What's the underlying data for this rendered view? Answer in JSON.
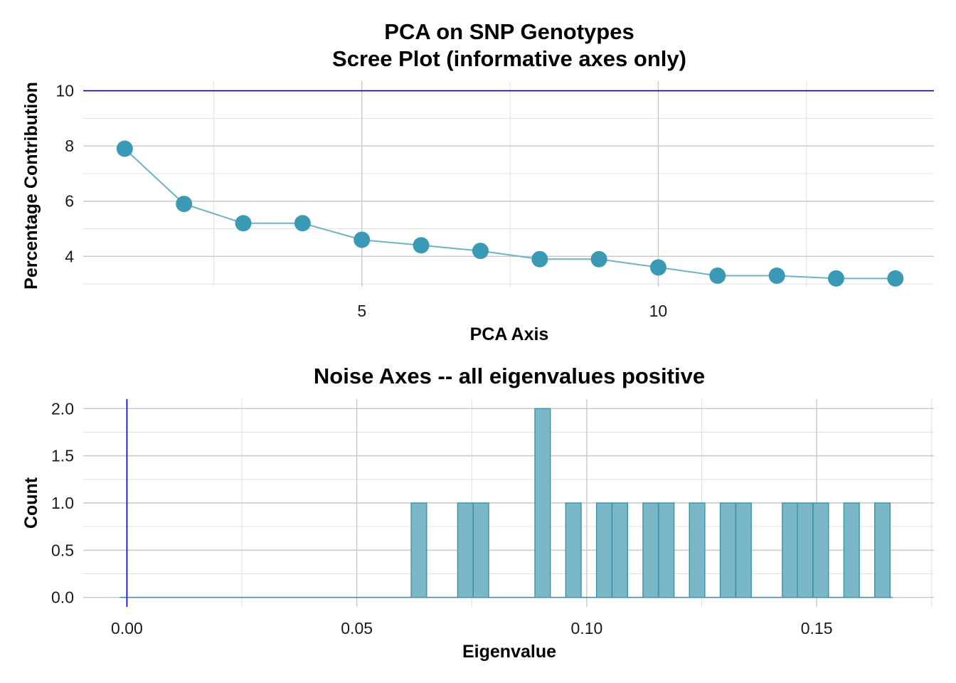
{
  "chart_data": [
    {
      "type": "line",
      "title": "PCA on SNP Genotypes",
      "subtitle": "Scree Plot (informative axes only)",
      "xlabel": "PCA Axis",
      "ylabel": "Percentage Contribution",
      "x": [
        1,
        2,
        3,
        4,
        5,
        6,
        7,
        8,
        9,
        10,
        11,
        12,
        13,
        14
      ],
      "series": [
        {
          "values": [
            7.9,
            5.9,
            5.2,
            5.2,
            4.6,
            4.4,
            4.2,
            3.9,
            3.9,
            3.6,
            3.3,
            3.3,
            3.2,
            3.2
          ]
        }
      ],
      "xlim": [
        0.3,
        14.65
      ],
      "ylim": [
        2.9,
        10.35
      ],
      "xticks": [
        5,
        10
      ],
      "yticks": [
        4,
        6,
        8,
        10
      ],
      "x_tick_labels": [
        "5",
        "10"
      ],
      "y_tick_labels": [
        "4",
        "6",
        "8",
        "10"
      ],
      "reference_line": {
        "orientation": "horizontal",
        "value": 10,
        "color": "#0000cc"
      },
      "colors": {
        "line": "#6db3c4",
        "point": "#3a9ab5"
      },
      "grid": true
    },
    {
      "type": "bar",
      "subtype": "histogram",
      "title": "Noise Axes -- all eigenvalues positive",
      "xlabel": "Eigenvalue",
      "ylabel": "Count",
      "bin_width": 0.00336,
      "bins": [
        {
          "x": 0.0635,
          "count": 1
        },
        {
          "x": 0.0736,
          "count": 1
        },
        {
          "x": 0.077,
          "count": 1
        },
        {
          "x": 0.0904,
          "count": 2
        },
        {
          "x": 0.0971,
          "count": 1
        },
        {
          "x": 0.1038,
          "count": 1
        },
        {
          "x": 0.1072,
          "count": 1
        },
        {
          "x": 0.1139,
          "count": 1
        },
        {
          "x": 0.1173,
          "count": 1
        },
        {
          "x": 0.124,
          "count": 1
        },
        {
          "x": 0.1307,
          "count": 1
        },
        {
          "x": 0.1341,
          "count": 1
        },
        {
          "x": 0.1442,
          "count": 1
        },
        {
          "x": 0.1475,
          "count": 1
        },
        {
          "x": 0.1509,
          "count": 1
        },
        {
          "x": 0.1576,
          "count": 1
        },
        {
          "x": 0.1643,
          "count": 1
        }
      ],
      "baseline_range": [
        -0.0015,
        0.1665
      ],
      "xlim": [
        -0.0095,
        0.1755
      ],
      "ylim": [
        -0.1,
        2.1
      ],
      "xticks": [
        0,
        0.05,
        0.1,
        0.15
      ],
      "yticks": [
        0,
        0.5,
        1,
        1.5,
        2
      ],
      "x_tick_labels": [
        "0.00",
        "0.05",
        "0.10",
        "0.15"
      ],
      "y_tick_labels": [
        "0.0",
        "0.5",
        "1.0",
        "1.5",
        "2.0"
      ],
      "reference_line": {
        "orientation": "vertical",
        "value": 0,
        "color": "#0000cc"
      },
      "colors": {
        "fill": "#7ab8c8",
        "border": "#3a93ad"
      },
      "grid": true
    }
  ]
}
